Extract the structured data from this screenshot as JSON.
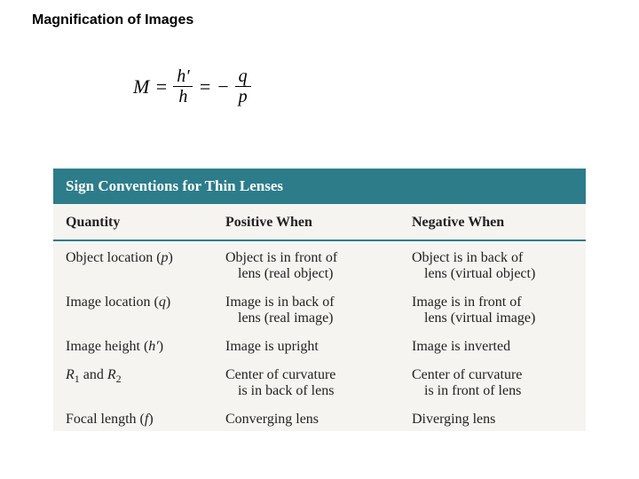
{
  "heading": "Magnification of Images",
  "formula": {
    "lhs": "M",
    "eq": "=",
    "frac1_num": "h'",
    "frac1_den": "h",
    "mid": "= −",
    "frac2_num": "q",
    "frac2_den": "p"
  },
  "table": {
    "title": "Sign Conventions for Thin Lenses",
    "header_bg": "#2d7c8a",
    "header_fg": "#ffffff",
    "bg": "#f6f4f0",
    "rule_color": "#2d7c8a",
    "columns": [
      "Quantity",
      "Positive When",
      "Negative When"
    ],
    "rows": [
      {
        "q_main": "Object location (",
        "q_sym": "p",
        "q_close": ")",
        "pos_l1": "Object is in front of",
        "pos_l2": "lens (real object)",
        "neg_l1": "Object is in back of",
        "neg_l2": "lens (virtual object)"
      },
      {
        "q_main": "Image location (",
        "q_sym": "q",
        "q_close": ")",
        "pos_l1": "Image is in back of",
        "pos_l2": "lens (real image)",
        "neg_l1": "Image is in front of",
        "neg_l2": "lens (virtual image)"
      },
      {
        "q_main": "Image height (",
        "q_sym": "h′",
        "q_close": ")",
        "pos_l1": "Image is upright",
        "pos_l2": "",
        "neg_l1": "Image is inverted",
        "neg_l2": ""
      },
      {
        "q_html": "R<sub>1</sub> and R<sub>2</sub>",
        "pos_l1": "Center of curvature",
        "pos_l2": "is in back of lens",
        "neg_l1": "Center of curvature",
        "neg_l2": "is in front of lens"
      },
      {
        "q_main": "Focal length (",
        "q_sym": "f",
        "q_close": ")",
        "pos_l1": "Converging lens",
        "pos_l2": "",
        "neg_l1": "Diverging lens",
        "neg_l2": ""
      }
    ]
  }
}
